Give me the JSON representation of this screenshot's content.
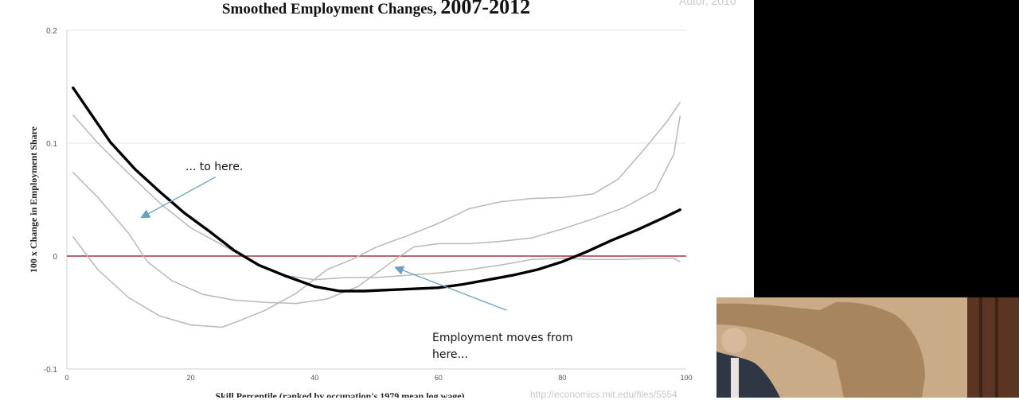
{
  "slide": {
    "title_main": "Smoothed Employment Changes, ",
    "title_years": "2007-2012",
    "author": "Autor, 2010",
    "footer_url": "http://economics.mit.edu/files/5554"
  },
  "chart_data": {
    "type": "line",
    "title": "Smoothed Employment Changes, 2007-2012",
    "xlabel": "Skill Percentile (ranked by occupation's 1979 mean log wage)",
    "ylabel": "100 x Change in Employment Share",
    "xlim": [
      0,
      100
    ],
    "ylim": [
      -0.1,
      0.2
    ],
    "xticks": [
      0,
      20,
      40,
      60,
      80,
      100
    ],
    "yticks": [
      -0.1,
      0,
      0.1,
      0.2
    ],
    "ytick_labels": [
      "-0.1",
      "0",
      "0.1",
      "0.2"
    ],
    "grid": true,
    "reference_line": {
      "y": 0,
      "color": "#a3343c"
    },
    "colors": {
      "highlight": "#000000",
      "background": "#b8b8b8",
      "arrow": "#6a9fc9"
    },
    "series": [
      {
        "highlight": true,
        "points": [
          [
            1,
            0.149
          ],
          [
            4,
            0.125
          ],
          [
            7,
            0.101
          ],
          [
            11,
            0.077
          ],
          [
            15,
            0.057
          ],
          [
            19,
            0.038
          ],
          [
            23,
            0.022
          ],
          [
            27,
            0.005
          ],
          [
            31,
            -0.008
          ],
          [
            35,
            -0.017
          ],
          [
            40,
            -0.027
          ],
          [
            44,
            -0.031
          ],
          [
            48,
            -0.031
          ],
          [
            52,
            -0.03
          ],
          [
            56,
            -0.029
          ],
          [
            60,
            -0.028
          ],
          [
            64,
            -0.025
          ],
          [
            68,
            -0.021
          ],
          [
            72,
            -0.017
          ],
          [
            76,
            -0.012
          ],
          [
            80,
            -0.005
          ],
          [
            84,
            0.004
          ],
          [
            88,
            0.014
          ],
          [
            92,
            0.023
          ],
          [
            96,
            0.033
          ],
          [
            99,
            0.041
          ]
        ]
      },
      {
        "highlight": false,
        "points": [
          [
            1,
            0.125
          ],
          [
            5,
            0.1
          ],
          [
            10,
            0.073
          ],
          [
            15,
            0.047
          ],
          [
            20,
            0.025
          ],
          [
            25,
            0.01
          ],
          [
            30,
            -0.005
          ],
          [
            35,
            -0.017
          ],
          [
            40,
            -0.021
          ],
          [
            45,
            -0.019
          ],
          [
            50,
            -0.019
          ],
          [
            55,
            -0.017
          ],
          [
            60,
            -0.015
          ],
          [
            65,
            -0.012
          ],
          [
            70,
            -0.008
          ],
          [
            75,
            -0.003
          ],
          [
            80,
            -0.002
          ],
          [
            85,
            -0.003
          ],
          [
            90,
            -0.003
          ],
          [
            95,
            -0.002
          ],
          [
            98,
            -0.002
          ],
          [
            99,
            -0.005
          ]
        ]
      },
      {
        "highlight": false,
        "points": [
          [
            1,
            0.074
          ],
          [
            5,
            0.052
          ],
          [
            10,
            0.02
          ],
          [
            13,
            -0.005
          ],
          [
            17,
            -0.022
          ],
          [
            22,
            -0.034
          ],
          [
            27,
            -0.039
          ],
          [
            32,
            -0.041
          ],
          [
            37,
            -0.042
          ],
          [
            42,
            -0.038
          ],
          [
            47,
            -0.027
          ],
          [
            50,
            -0.015
          ],
          [
            53,
            -0.003
          ],
          [
            56,
            0.008
          ],
          [
            60,
            0.011
          ],
          [
            65,
            0.011
          ],
          [
            70,
            0.013
          ],
          [
            75,
            0.016
          ],
          [
            80,
            0.024
          ],
          [
            85,
            0.033
          ],
          [
            90,
            0.043
          ],
          [
            95,
            0.058
          ],
          [
            98,
            0.09
          ],
          [
            99,
            0.124
          ]
        ]
      },
      {
        "highlight": false,
        "points": [
          [
            1,
            0.017
          ],
          [
            5,
            -0.012
          ],
          [
            10,
            -0.037
          ],
          [
            15,
            -0.053
          ],
          [
            20,
            -0.061
          ],
          [
            25,
            -0.063
          ],
          [
            28,
            -0.057
          ],
          [
            32,
            -0.048
          ],
          [
            37,
            -0.033
          ],
          [
            42,
            -0.012
          ],
          [
            46,
            -0.003
          ],
          [
            50,
            0.008
          ],
          [
            55,
            0.018
          ],
          [
            60,
            0.029
          ],
          [
            65,
            0.042
          ],
          [
            70,
            0.048
          ],
          [
            75,
            0.051
          ],
          [
            80,
            0.052
          ],
          [
            85,
            0.055
          ],
          [
            89,
            0.068
          ],
          [
            93,
            0.093
          ],
          [
            97,
            0.12
          ],
          [
            99,
            0.136
          ]
        ]
      }
    ],
    "annotations": [
      {
        "text": "... to here.",
        "arrow_from": [
          24,
          0.07
        ],
        "arrow_to": [
          12,
          0.034
        ]
      },
      {
        "text": "Employment moves from here...",
        "lines": [
          "Employment moves from",
          "here..."
        ],
        "arrow_from": [
          71,
          -0.048
        ],
        "arrow_to": [
          53,
          -0.01
        ]
      }
    ]
  }
}
